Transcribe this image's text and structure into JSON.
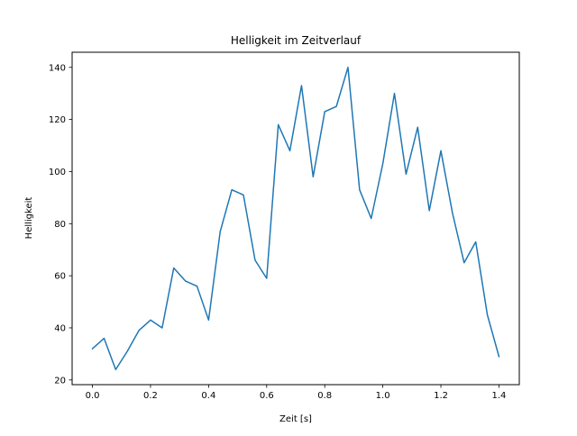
{
  "chart_data": {
    "type": "line",
    "title": "Helligkeit im Zeitverlauf",
    "xlabel": "Zeit [s]",
    "ylabel": "Helligkeit",
    "xlim": [
      -0.07,
      1.47
    ],
    "ylim": [
      18.2,
      145.8
    ],
    "xticks": [
      0.0,
      0.2,
      0.4,
      0.6,
      0.8,
      1.0,
      1.2,
      1.4
    ],
    "xtick_labels": [
      "0.0",
      "0.2",
      "0.4",
      "0.6",
      "0.8",
      "1.0",
      "1.2",
      "1.4"
    ],
    "yticks": [
      20,
      40,
      60,
      80,
      100,
      120,
      140
    ],
    "ytick_labels": [
      "20",
      "40",
      "60",
      "80",
      "100",
      "120",
      "140"
    ],
    "grid": false,
    "series": [
      {
        "color": "#1f77b4",
        "x": [
          0.0,
          0.04,
          0.08,
          0.12,
          0.16,
          0.2,
          0.24,
          0.28,
          0.32,
          0.36,
          0.4,
          0.44,
          0.48,
          0.52,
          0.56,
          0.6,
          0.64,
          0.68,
          0.72,
          0.76,
          0.8,
          0.84,
          0.88,
          0.92,
          0.96,
          1.0,
          1.04,
          1.08,
          1.12,
          1.16,
          1.2,
          1.24,
          1.28,
          1.32,
          1.36,
          1.4
        ],
        "y": [
          32,
          36,
          24,
          31,
          39,
          43,
          40,
          63,
          58,
          56,
          43,
          77,
          93,
          91,
          66,
          59,
          118,
          108,
          133,
          98,
          123,
          125,
          140,
          93,
          82,
          103,
          130,
          99,
          117,
          85,
          108,
          84,
          65,
          73,
          45,
          29
        ]
      }
    ]
  }
}
